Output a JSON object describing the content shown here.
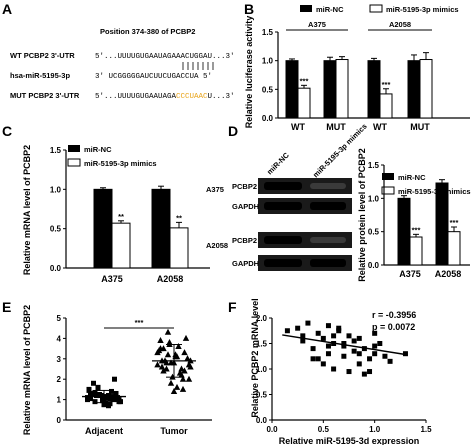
{
  "panels": [
    "A",
    "B",
    "C",
    "D",
    "E",
    "F"
  ],
  "colors": {
    "black": "#000000",
    "white": "#ffffff",
    "orange": "#e8a317",
    "blot_bg": "#1a1a1a"
  },
  "panel_a": {
    "title": "Position 374-380 of PCBP2",
    "rows": [
      {
        "label": "WT PCBP2 3'-UTR",
        "seq": "5'...UUUUGUGAAUAGAAACUGGAU...3'"
      },
      {
        "label": "hsa-miR-5195-3p",
        "seq": "3'  UCGGGGGAUCUUCUGACCUA  5'"
      },
      {
        "label": "MUT PCBP2 3'-UTR",
        "seq_prefix": "5'...UUUUGUGAAUAGA",
        "seq_mut": "CCCUAAC",
        "seq_suffix": "U...3'"
      }
    ]
  },
  "chart_data": [
    {
      "id": "B",
      "type": "bar",
      "legend": [
        "miR-NC",
        "miR-5195-3p mimics"
      ],
      "groups": [
        "A375",
        "A2058"
      ],
      "categories": [
        "WT",
        "MUT",
        "WT",
        "MUT"
      ],
      "ylabel": "Relative luciferase activity",
      "ylim": [
        0,
        1.5
      ],
      "yticks": [
        "0.0",
        "0.5",
        "1.0",
        "1.5"
      ],
      "series": [
        {
          "name": "miR-NC",
          "values": [
            1.0,
            1.0,
            1.0,
            1.0
          ],
          "errors": [
            0.03,
            0.06,
            0.04,
            0.1
          ]
        },
        {
          "name": "miR-5195-3p mimics",
          "values": [
            0.52,
            1.02,
            0.42,
            1.02
          ],
          "errors": [
            0.05,
            0.05,
            0.09,
            0.12
          ]
        }
      ],
      "significance": [
        "***",
        "",
        "***",
        ""
      ]
    },
    {
      "id": "C",
      "type": "bar",
      "legend": [
        "miR-NC",
        "miR-5195-3p mimics"
      ],
      "categories": [
        "A375",
        "A2058"
      ],
      "ylabel": "Relative mRNA level of PCBP2",
      "ylim": [
        0,
        1.5
      ],
      "yticks": [
        "0.0",
        "0.5",
        "1.0",
        "1.5"
      ],
      "series": [
        {
          "name": "miR-NC",
          "values": [
            1.0,
            1.0
          ],
          "errors": [
            0.02,
            0.04
          ]
        },
        {
          "name": "miR-5195-3p mimics",
          "values": [
            0.57,
            0.51
          ],
          "errors": [
            0.03,
            0.07
          ]
        }
      ],
      "significance": [
        "**",
        "**"
      ]
    },
    {
      "id": "D",
      "type": "bar",
      "legend": [
        "miR-NC",
        "miR-5195-3p mimics"
      ],
      "categories": [
        "A375",
        "A2058"
      ],
      "ylabel": "Relative protein level of PCBP2",
      "ylim": [
        0,
        1.5
      ],
      "yticks": [
        "0.0",
        "0.5",
        "1.0",
        "1.5"
      ],
      "series": [
        {
          "name": "miR-NC",
          "values": [
            1.0,
            1.23
          ],
          "errors": [
            0.04,
            0.05
          ]
        },
        {
          "name": "miR-5195-3p mimics",
          "values": [
            0.42,
            0.5
          ],
          "errors": [
            0.04,
            0.07
          ]
        }
      ],
      "significance": [
        "***",
        "***"
      ]
    },
    {
      "id": "E",
      "type": "scatter",
      "categories": [
        "Adjacent",
        "Tumor"
      ],
      "ylabel": "Relative mRNA level of PCBP2",
      "ylim": [
        0,
        5
      ],
      "yticks": [
        "0",
        "1",
        "2",
        "3",
        "4",
        "5"
      ],
      "means": [
        1.15,
        2.9
      ],
      "sd": [
        0.3,
        0.8
      ],
      "adjacent": [
        1.1,
        1.2,
        0.9,
        1.3,
        1.0,
        1.5,
        0.8,
        1.2,
        1.1,
        0.95,
        1.05,
        1.4,
        1.6,
        1.0,
        0.85,
        1.3,
        1.1,
        1.25,
        0.9,
        1.15,
        1.8,
        2.0,
        1.2,
        1.0,
        0.7,
        1.35,
        1.1,
        0.95,
        1.45,
        1.05,
        1.2,
        1.0,
        0.75,
        1.3,
        1.15,
        1.55,
        0.9,
        1.1,
        1.25,
        1.0
      ],
      "tumor": [
        2.5,
        3.0,
        2.8,
        3.5,
        2.2,
        4.3,
        2.0,
        3.2,
        2.9,
        1.5,
        3.8,
        2.6,
        3.1,
        2.4,
        3.3,
        1.8,
        2.7,
        3.6,
        2.9,
        4.0,
        2.1,
        3.4,
        2.3,
        2.8,
        3.0,
        1.4,
        3.9,
        2.5,
        3.2,
        2.7,
        3.1,
        2.6,
        2.0,
        3.7,
        2.9,
        1.6,
        3.5,
        2.4,
        2.8,
        3.3
      ],
      "significance": "***"
    },
    {
      "id": "F",
      "type": "scatter",
      "xlabel": "Relative miR-5195-3d expression",
      "ylabel": "Relative PCBP2 mRNA level",
      "xlim": [
        0,
        1.5
      ],
      "ylim": [
        0,
        2.0
      ],
      "xticks": [
        "0.0",
        "0.5",
        "1.0",
        "1.5"
      ],
      "yticks": [
        "0.0",
        "0.5",
        "1.0",
        "1.5",
        "2.0"
      ],
      "annotation_r": "r = -0.3956",
      "annotation_p": "p = 0.0072",
      "regression": {
        "slope": -0.32,
        "intercept": 1.7
      },
      "x": [
        0.15,
        0.25,
        0.3,
        0.35,
        0.4,
        0.45,
        0.45,
        0.5,
        0.55,
        0.55,
        0.6,
        0.6,
        0.65,
        0.7,
        0.7,
        0.75,
        0.75,
        0.8,
        0.8,
        0.85,
        0.85,
        0.9,
        0.9,
        0.95,
        1.0,
        1.0,
        1.05,
        1.1,
        1.15,
        1.3,
        0.5,
        0.6,
        0.4,
        0.7,
        0.55,
        0.95,
        0.65,
        0.85,
        0.3,
        1.0
      ],
      "y": [
        1.75,
        1.8,
        1.55,
        1.9,
        1.4,
        1.7,
        1.2,
        1.6,
        1.85,
        1.3,
        1.5,
        1.0,
        1.75,
        1.45,
        1.25,
        1.65,
        0.95,
        1.55,
        1.35,
        1.1,
        1.6,
        1.4,
        0.9,
        1.2,
        1.7,
        1.3,
        1.5,
        1.25,
        1.15,
        1.3,
        1.1,
        1.65,
        1.2,
        1.5,
        1.45,
        0.95,
        1.8,
        1.3,
        1.65,
        1.45
      ]
    }
  ],
  "blots": {
    "column_labels": [
      "miR-NC",
      "miR-5195-3p mimics"
    ],
    "rows": [
      {
        "group": "A375",
        "bands": [
          "PCBP2",
          "GAPDH"
        ]
      },
      {
        "group": "A2058",
        "bands": [
          "PCBP2",
          "GAPDH"
        ]
      }
    ]
  }
}
